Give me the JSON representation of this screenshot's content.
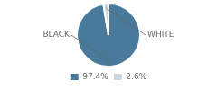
{
  "chart_data": {
    "type": "pie",
    "categories": [
      "BLACK",
      "WHITE"
    ],
    "values": [
      97.4,
      2.6
    ],
    "value_labels": [
      "97.4%",
      "2.6%"
    ],
    "colors": [
      "#4a7a9b",
      "#c8d8e4"
    ],
    "legend": "bottom"
  }
}
